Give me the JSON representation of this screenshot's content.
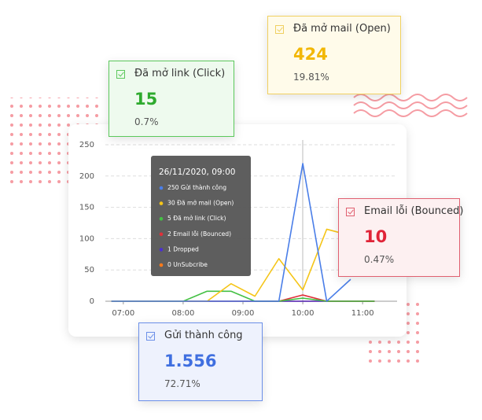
{
  "chart_data": {
    "type": "line",
    "x": [
      6.8,
      7.2,
      7.6,
      8.0,
      8.4,
      8.8,
      9.2,
      9.6,
      10.0,
      10.4,
      10.8,
      11.2
    ],
    "xlim": [
      6.7,
      11.3
    ],
    "xticks": [
      {
        "value": 7,
        "label": "07:00"
      },
      {
        "value": 8,
        "label": "08:00"
      },
      {
        "value": 9,
        "label": "09:00"
      },
      {
        "value": 10,
        "label": "10:00"
      },
      {
        "value": 11,
        "label": "11:00"
      }
    ],
    "ylim": [
      0,
      250
    ],
    "yticks": [
      0,
      50,
      100,
      150,
      200,
      250
    ],
    "grid": true,
    "series": [
      {
        "color": "#ff7a1a",
        "values": [
          0,
          0,
          0,
          0,
          0,
          0,
          0,
          0,
          0,
          0,
          0,
          0
        ]
      },
      {
        "color": "#4b2fd0",
        "values": [
          0,
          0,
          0,
          0,
          0,
          0,
          0,
          0,
          0,
          0,
          0,
          0
        ]
      },
      {
        "color": "#e0303a",
        "values": [
          0,
          0,
          0,
          0,
          0,
          0,
          0,
          0,
          10,
          0,
          0,
          0
        ]
      },
      {
        "color": "#44c044",
        "values": [
          0,
          0,
          0,
          0,
          16,
          16,
          0,
          0,
          5,
          0,
          0,
          0
        ]
      },
      {
        "color": "#f5c518",
        "values": [
          0,
          0,
          0,
          0,
          0,
          28,
          8,
          68,
          18,
          115,
          105,
          null
        ]
      },
      {
        "color": "#4a7ee8",
        "values": [
          0,
          0,
          0,
          0,
          0,
          0,
          0,
          0,
          220,
          0,
          35,
          null
        ]
      }
    ]
  },
  "tooltip": {
    "title": "26/11/2020, 09:00",
    "items": [
      {
        "text": "250 Gửi thành công",
        "color": "#4a7ee8"
      },
      {
        "text": "30 Đã mở mail (Open)",
        "color": "#f5c518"
      },
      {
        "text": "5 Đã mở link (Click)",
        "color": "#44c044"
      },
      {
        "text": "2 Email lỗi (Bounced)",
        "color": "#e0303a"
      },
      {
        "text": "1 Dropped",
        "color": "#4b2fd0"
      },
      {
        "text": "0 UnSubcribe",
        "color": "#ff7a1a"
      }
    ]
  },
  "cards": [
    {
      "title": "Đã mở mail (Open)",
      "value": "424",
      "percent": "19.81%",
      "color": "#f2b705",
      "border": "#f0d060",
      "background": "#fffbea"
    },
    {
      "title": "Đã mở link (Click)",
      "value": "15",
      "percent": "0.7%",
      "color": "#2eaa2e",
      "border": "#5cc85c",
      "background": "#eefaee"
    },
    {
      "title": "Email lỗi (Bounced)",
      "value": "10",
      "percent": "0.47%",
      "color": "#e02438",
      "border": "#e06070",
      "background": "#fdf0f1"
    },
    {
      "title": "Gửi thành công",
      "value": "1.556",
      "percent": "72.71%",
      "color": "#3f6fe0",
      "border": "#6b8fe8",
      "background": "#eef2fd"
    }
  ]
}
